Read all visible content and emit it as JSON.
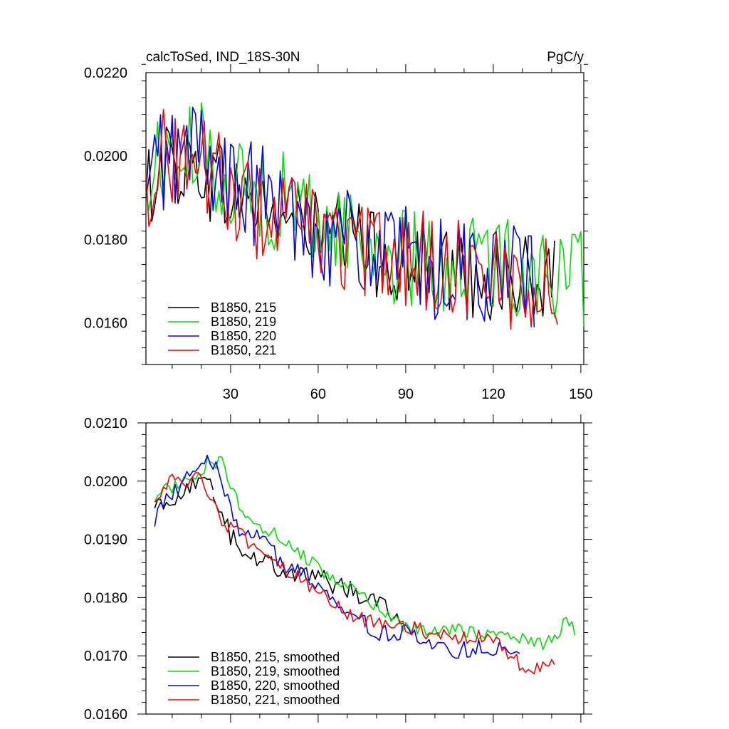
{
  "chart_data": [
    {
      "type": "line",
      "title": "calcToSed, IND_18S-30N",
      "units": "PgC/y",
      "xlim": [
        1,
        151
      ],
      "ylim": [
        0.015,
        0.022
      ],
      "xticks": [
        30,
        60,
        90,
        120,
        150
      ],
      "xtick_labels": [
        "30",
        "60",
        "90",
        "120",
        "150"
      ],
      "yticks": [
        0.016,
        0.018,
        0.02,
        0.022
      ],
      "ytick_labels": [
        "0.0160",
        "0.0180",
        "0.0200",
        "0.0220"
      ],
      "grid": false,
      "legend_position": "bottom-left",
      "series": [
        {
          "name": "B1850, 215",
          "color": "#000000",
          "x_start": 1,
          "x_end": 141,
          "anchors_x": [
            1,
            5,
            10,
            20,
            30,
            40,
            50,
            60,
            70,
            80,
            90,
            100,
            110,
            120,
            130,
            141
          ],
          "anchors_y": [
            0.0188,
            0.02,
            0.0198,
            0.0197,
            0.0191,
            0.0188,
            0.0185,
            0.0182,
            0.018,
            0.0177,
            0.0175,
            0.0173,
            0.0172,
            0.0171,
            0.017,
            0.0169
          ],
          "noise": 0.0011
        },
        {
          "name": "B1850, 219",
          "color": "#00e000",
          "x_start": 1,
          "x_end": 151,
          "anchors_x": [
            1,
            5,
            10,
            20,
            30,
            40,
            50,
            60,
            70,
            80,
            90,
            100,
            110,
            120,
            130,
            140,
            151
          ],
          "anchors_y": [
            0.0188,
            0.02,
            0.0199,
            0.0201,
            0.0194,
            0.019,
            0.0189,
            0.0184,
            0.0182,
            0.0178,
            0.0175,
            0.0174,
            0.0175,
            0.0174,
            0.0173,
            0.0172,
            0.017
          ],
          "noise": 0.0012
        },
        {
          "name": "B1850, 220",
          "color": "#0000ff",
          "x_start": 1,
          "x_end": 134,
          "anchors_x": [
            1,
            5,
            10,
            20,
            30,
            40,
            50,
            60,
            70,
            80,
            90,
            100,
            110,
            120,
            134
          ],
          "anchors_y": [
            0.0186,
            0.02,
            0.0199,
            0.0203,
            0.0192,
            0.019,
            0.0187,
            0.0183,
            0.018,
            0.0176,
            0.0175,
            0.0172,
            0.0173,
            0.0172,
            0.0171
          ],
          "noise": 0.0013
        },
        {
          "name": "B1850, 221",
          "color": "#ff0000",
          "x_start": 1,
          "x_end": 142,
          "anchors_x": [
            1,
            5,
            10,
            20,
            30,
            40,
            50,
            60,
            70,
            80,
            90,
            100,
            110,
            120,
            130,
            142
          ],
          "anchors_y": [
            0.0192,
            0.02,
            0.02,
            0.0199,
            0.0191,
            0.0186,
            0.0185,
            0.0182,
            0.0178,
            0.0176,
            0.0176,
            0.0174,
            0.0173,
            0.0172,
            0.0169,
            0.0169
          ],
          "noise": 0.0012
        }
      ]
    },
    {
      "type": "line",
      "title": "",
      "units": "",
      "xlim": [
        1,
        151
      ],
      "ylim": [
        0.016,
        0.021
      ],
      "xticks": [
        30,
        60,
        90,
        120,
        150
      ],
      "xtick_labels": [],
      "yticks": [
        0.016,
        0.017,
        0.018,
        0.019,
        0.02,
        0.021
      ],
      "ytick_labels": [
        "0.0160",
        "0.0170",
        "0.0180",
        "0.0190",
        "0.0200",
        "0.0210"
      ],
      "grid": false,
      "legend_position": "bottom-left",
      "series": [
        {
          "name": "B1850, 215, smoothed",
          "color": "#000000",
          "x_start": 4,
          "x_end": 24,
          "anchors_x": [
            4,
            8,
            12,
            16,
            20,
            24
          ],
          "anchors_y": [
            0.01965,
            0.0196,
            0.01975,
            0.0199,
            0.02,
            0.0199
          ],
          "noise": 0.00012
        },
        {
          "name": "B1850, 215, smoothed",
          "color": "#000000",
          "x_start": 24,
          "x_end": 89,
          "anchors_x": [
            24,
            30,
            36,
            42,
            48,
            56,
            64,
            72,
            80,
            89
          ],
          "anchors_y": [
            0.0199,
            0.01905,
            0.0188,
            0.0186,
            0.0185,
            0.0184,
            0.01825,
            0.0181,
            0.018,
            0.0176
          ],
          "noise": 0.00018
        },
        {
          "name": "B1850, 219, smoothed",
          "color": "#00e000",
          "x_start": 4,
          "x_end": 148,
          "anchors_x": [
            4,
            10,
            16,
            22,
            27,
            30,
            36,
            42,
            50,
            58,
            66,
            74,
            82,
            90,
            100,
            110,
            120,
            130,
            136,
            142,
            145,
            148
          ],
          "anchors_y": [
            0.01975,
            0.0199,
            0.02005,
            0.0203,
            0.02035,
            0.01985,
            0.0193,
            0.0192,
            0.0189,
            0.0186,
            0.0183,
            0.01805,
            0.01775,
            0.0175,
            0.0174,
            0.01745,
            0.01735,
            0.0173,
            0.0172,
            0.0173,
            0.01775,
            0.01735
          ],
          "noise": 0.00012
        },
        {
          "name": "B1850, 220, smoothed",
          "color": "#0000ff",
          "x_start": 4,
          "x_end": 129,
          "anchors_x": [
            4,
            8,
            14,
            20,
            24,
            28,
            32,
            36,
            42,
            48,
            54,
            60,
            66,
            72,
            80,
            90,
            100,
            110,
            118,
            124,
            129
          ],
          "anchors_y": [
            0.01935,
            0.01975,
            0.02,
            0.02025,
            0.02035,
            0.01985,
            0.0192,
            0.01915,
            0.01905,
            0.0185,
            0.01845,
            0.01825,
            0.018,
            0.0177,
            0.0174,
            0.0174,
            0.0171,
            0.0171,
            0.01715,
            0.0171,
            0.017
          ],
          "noise": 0.00015
        },
        {
          "name": "B1850, 221, smoothed",
          "color": "#ff0000",
          "x_start": 4,
          "x_end": 141,
          "anchors_x": [
            4,
            10,
            16,
            20,
            24,
            28,
            34,
            40,
            46,
            54,
            62,
            70,
            78,
            86,
            94,
            102,
            110,
            118,
            126,
            132,
            138,
            141
          ],
          "anchors_y": [
            0.01975,
            0.02,
            0.01995,
            0.0201,
            0.01965,
            0.01925,
            0.01905,
            0.0187,
            0.01855,
            0.0183,
            0.0181,
            0.0177,
            0.0176,
            0.0176,
            0.01745,
            0.01735,
            0.0173,
            0.01735,
            0.017,
            0.0167,
            0.0168,
            0.0169
          ],
          "noise": 0.00013
        }
      ]
    }
  ]
}
